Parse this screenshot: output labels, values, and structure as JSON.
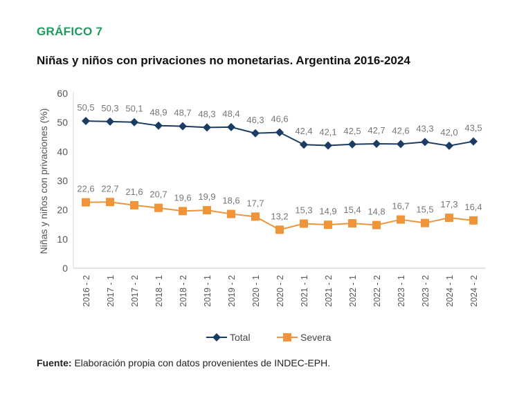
{
  "header": {
    "kicker": "GRÁFICO 7",
    "title": "Niñas y niños con privaciones no monetarias. Argentina 2016-2024"
  },
  "footer": {
    "source_label": "Fuente:",
    "source_text": " Elaboración propia con datos provenientes de INDEC-EPH."
  },
  "chart_data": {
    "type": "line",
    "title": "",
    "xlabel": "",
    "ylabel": "Niñas y niños con privaciones (%)",
    "ylim": [
      0,
      60
    ],
    "yticks": [
      "0",
      "10",
      "20",
      "30",
      "40",
      "50",
      "60"
    ],
    "grid": false,
    "legend_position": "bottom",
    "categories": [
      "2016 - 2",
      "2017 - 1",
      "2017 - 2",
      "2018 - 1",
      "2018 - 2",
      "2019 - 1",
      "2019 - 2",
      "2020 - 1",
      "2020 - 2",
      "2021 - 1",
      "2021 - 2",
      "2022 - 1",
      "2022 - 2",
      "2023 - 1",
      "2023 - 2",
      "2024 - 1",
      "2024 - 2"
    ],
    "series": [
      {
        "name": "Total",
        "marker": "diamond",
        "color": "#1b3d63",
        "values": [
          50.5,
          50.3,
          50.1,
          48.9,
          48.7,
          48.3,
          48.4,
          46.3,
          46.6,
          42.4,
          42.1,
          42.5,
          42.7,
          42.6,
          43.3,
          42.0,
          43.5
        ],
        "labels": [
          "50,5",
          "50,3",
          "50,1",
          "48,9",
          "48,7",
          "48,3",
          "48,4",
          "46,3",
          "46,6",
          "42,4",
          "42,1",
          "42,5",
          "42,7",
          "42,6",
          "43,3",
          "42,0",
          "43,5"
        ]
      },
      {
        "name": "Severa",
        "marker": "square",
        "color": "#f0943a",
        "values": [
          22.6,
          22.7,
          21.6,
          20.7,
          19.6,
          19.9,
          18.6,
          17.7,
          13.2,
          15.3,
          14.9,
          15.4,
          14.8,
          16.7,
          15.5,
          17.3,
          16.4
        ],
        "labels": [
          "22,6",
          "22,7",
          "21,6",
          "20,7",
          "19,6",
          "19,9",
          "18,6",
          "17,7",
          "13,2",
          "15,3",
          "14,9",
          "15,4",
          "14,8",
          "16,7",
          "15,5",
          "17,3",
          "16,4"
        ]
      }
    ]
  }
}
